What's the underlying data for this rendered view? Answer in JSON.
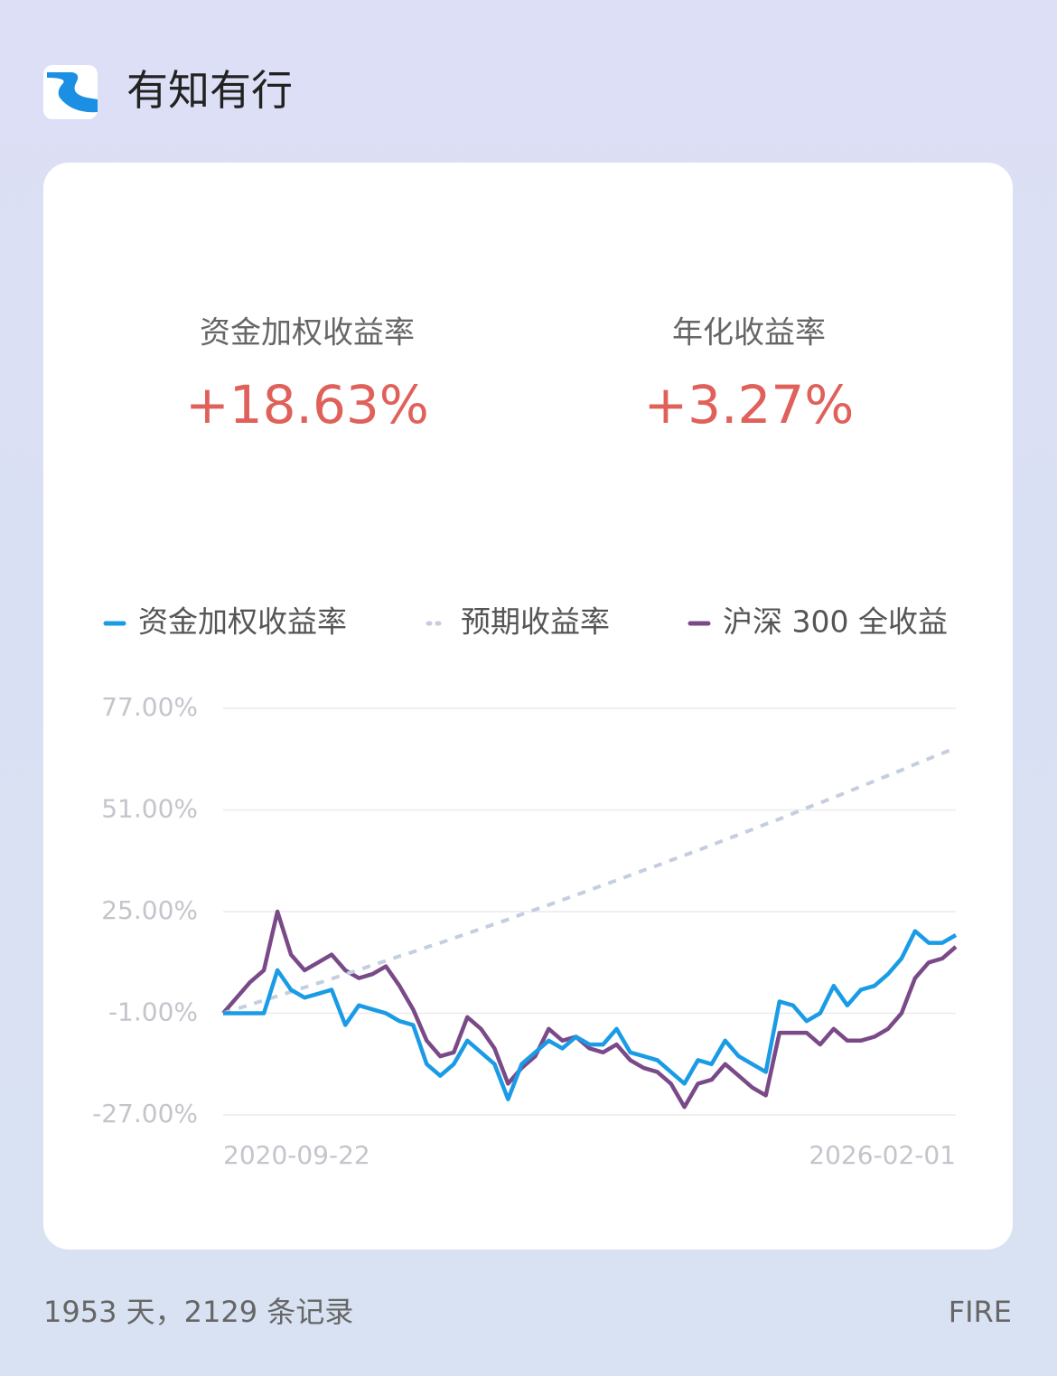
{
  "header": {
    "title": "有知有行"
  },
  "stats": [
    {
      "label": "资金加权收益率",
      "value": "+18.63%"
    },
    {
      "label": "年化收益率",
      "value": "+3.27%"
    }
  ],
  "chart_data": {
    "type": "line",
    "categories": [
      "2020-09-22",
      null,
      null,
      null,
      null,
      null,
      null,
      null,
      null,
      null,
      null,
      null,
      null,
      null,
      null,
      null,
      null,
      null,
      null,
      null,
      null,
      null,
      null,
      null,
      null,
      null,
      null,
      null,
      null,
      null,
      null,
      null,
      null,
      null,
      null,
      null,
      null,
      null,
      null,
      null,
      null,
      null,
      null,
      null,
      null,
      null,
      null,
      null,
      null,
      null,
      null,
      null,
      null,
      null,
      "2026-02-01"
    ],
    "series": [
      {
        "name": "资金加权收益率",
        "color": "#1a9be6",
        "values": [
          -1,
          -1,
          -1,
          -1,
          10,
          5,
          3,
          4,
          5,
          -4,
          1,
          0,
          -1,
          -3,
          -4,
          -14,
          -17,
          -14,
          -8,
          -11,
          -14,
          -23,
          -14,
          -11,
          -8,
          -10,
          -7,
          -9,
          -9,
          -5,
          -11,
          -12,
          -13,
          -16,
          -19,
          -13,
          -14,
          -8,
          -12,
          -14,
          -16,
          2,
          1,
          -3,
          -1,
          6,
          1,
          5,
          6,
          9,
          13,
          20,
          17,
          17,
          19
        ]
      },
      {
        "name": "预期收益率",
        "color": "#c5cde0",
        "dashed": true,
        "values": [
          -1,
          0.1,
          1.2,
          2.3,
          3.4,
          4.5,
          5.6,
          6.7,
          7.8,
          9.0,
          10.1,
          11.3,
          12.4,
          13.6,
          14.7,
          15.9,
          17.0,
          18.2,
          19.4,
          20.6,
          21.8,
          23.0,
          24.3,
          25.5,
          26.7,
          28.0,
          29.2,
          30.5,
          31.8,
          33.0,
          34.3,
          35.6,
          36.8,
          38.1,
          39.4,
          40.7,
          42.0,
          43.4,
          44.7,
          46.0,
          47.4,
          48.7,
          50.1,
          51.5,
          52.8,
          54.2,
          55.6,
          57.0,
          58.4,
          59.8,
          61.2,
          62.7,
          64.1,
          65.5,
          66.9
        ]
      },
      {
        "name": "沪深 300 全收益",
        "color": "#7a4a88",
        "values": [
          -1,
          3,
          7,
          10,
          25,
          14,
          10,
          12,
          14,
          10,
          8,
          9,
          11,
          6,
          0,
          -8,
          -12,
          -11,
          -2,
          -5,
          -10,
          -19,
          -15,
          -12,
          -5,
          -8,
          -7,
          -10,
          -11,
          -9,
          -13,
          -15,
          -16,
          -19,
          -25,
          -19,
          -18,
          -14,
          -17,
          -20,
          -22,
          -6,
          -6,
          -6,
          -9,
          -5,
          -8,
          -8,
          -7,
          -5,
          -1,
          8,
          12,
          13,
          16
        ]
      }
    ],
    "ylim": [
      -27,
      77
    ],
    "yticks": [
      {
        "value": 77,
        "label": "77.00%"
      },
      {
        "value": 51,
        "label": "51.00%"
      },
      {
        "value": 25,
        "label": "25.00%"
      },
      {
        "value": -1,
        "label": "-1.00%"
      },
      {
        "value": -27,
        "label": "-27.00%"
      }
    ],
    "grid": true
  },
  "footer": {
    "left": "1953 天，2129 条记录",
    "right": "FIRE"
  }
}
